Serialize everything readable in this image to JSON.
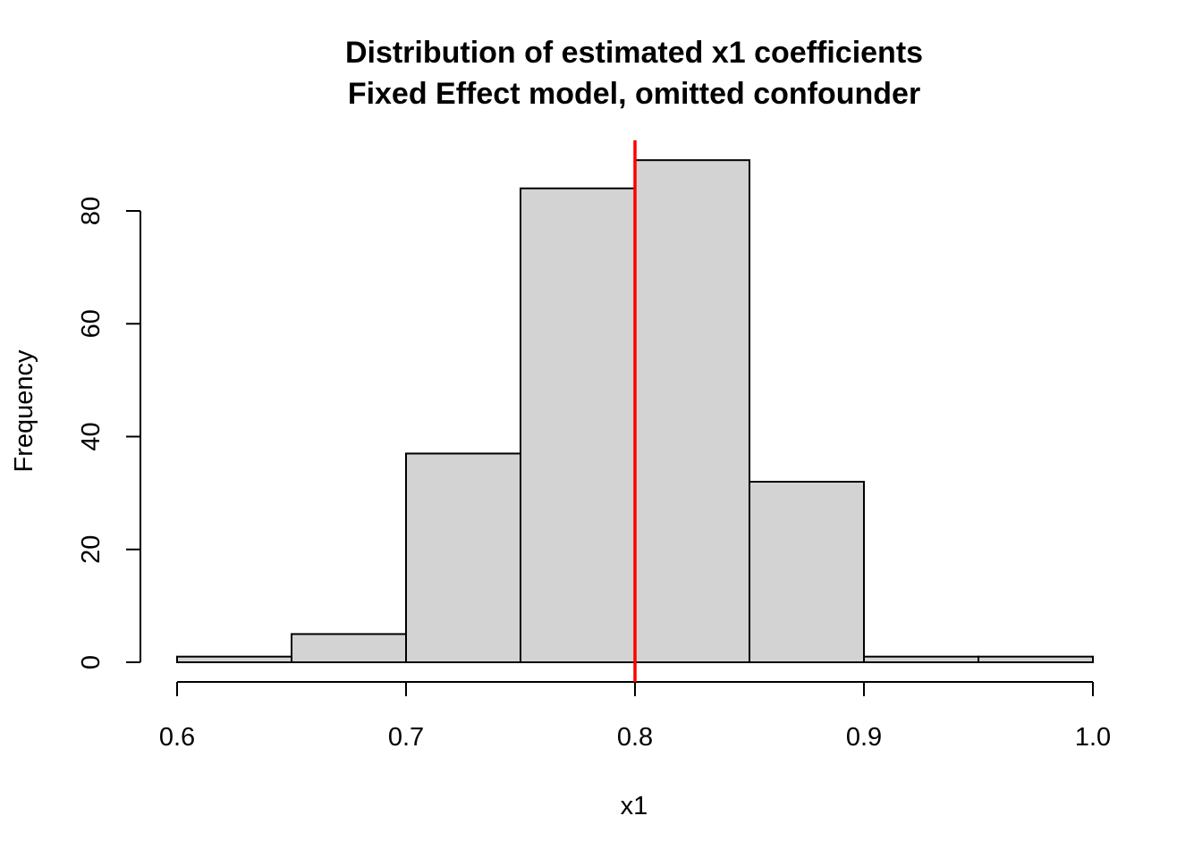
{
  "chart_data": {
    "type": "bar",
    "subtype": "histogram",
    "title": "Distribution of estimated x1 coefficients",
    "subtitle": "Fixed Effect model, omitted confounder",
    "xlabel": "x1",
    "ylabel": "Frequency",
    "bin_edges": [
      0.6,
      0.65,
      0.7,
      0.75,
      0.8,
      0.85,
      0.9,
      0.95,
      1.0
    ],
    "values": [
      1,
      5,
      37,
      84,
      89,
      32,
      1,
      1
    ],
    "xlim": [
      0.6,
      1.0
    ],
    "ylim": [
      0,
      89
    ],
    "x_ticks": [
      "0.6",
      "0.7",
      "0.8",
      "0.9",
      "1.0"
    ],
    "y_ticks": [
      "0",
      "20",
      "40",
      "60",
      "80"
    ],
    "grid": false,
    "bar_color": "#d3d3d3",
    "reference_line": {
      "x": 0.8,
      "color": "#ff0000"
    }
  }
}
